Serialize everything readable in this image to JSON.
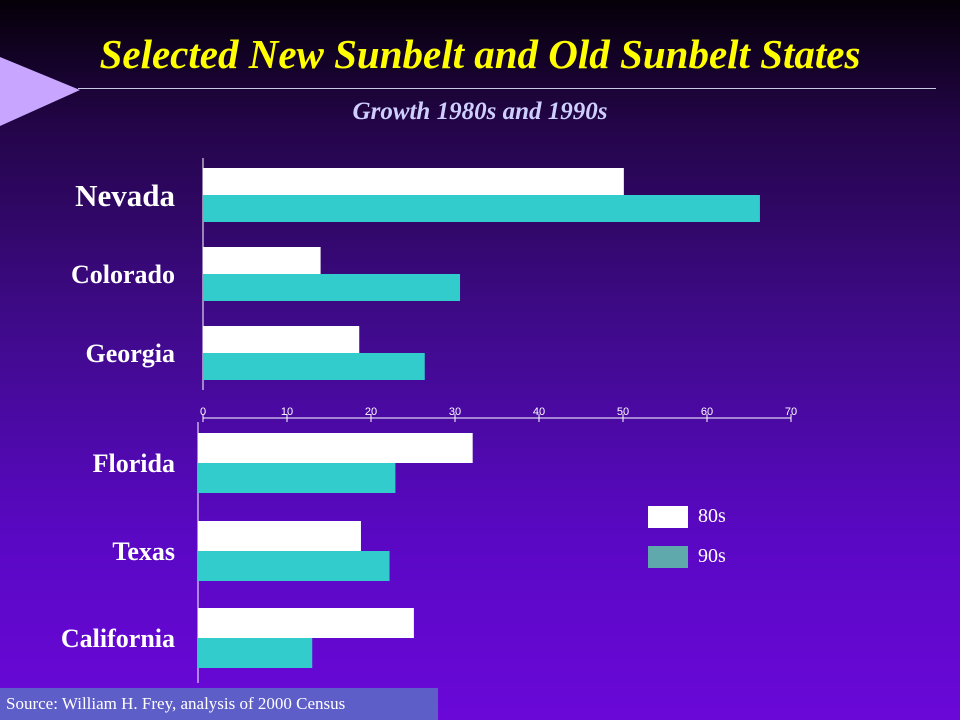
{
  "title": "Selected New Sunbelt and Old Sunbelt States",
  "subtitle": "Growth 1980s and 1990s",
  "source": "Source: William H. Frey, analysis of 2000 Census",
  "colors": {
    "s80": "#ffffff",
    "s90": "#33cccc",
    "legend90": "#5fa8ac",
    "title": "#ffff00"
  },
  "chart_data": [
    {
      "type": "bar",
      "orientation": "horizontal",
      "categories": [
        "Nevada",
        "Colorado",
        "Georgia"
      ],
      "series": [
        {
          "name": "80s",
          "values": [
            50.1,
            14.0,
            18.6
          ]
        },
        {
          "name": "90s",
          "values": [
            66.3,
            30.6,
            26.4
          ]
        }
      ],
      "xticks": [
        "0",
        "10",
        "20",
        "30",
        "40",
        "50",
        "60",
        "70"
      ],
      "xlim": [
        0,
        70
      ]
    },
    {
      "type": "bar",
      "orientation": "horizontal",
      "categories": [
        "Florida",
        "Texas",
        "California"
      ],
      "series": [
        {
          "name": "80s",
          "values": [
            32.7,
            19.4,
            25.7
          ]
        },
        {
          "name": "90s",
          "values": [
            23.5,
            22.8,
            13.6
          ]
        }
      ],
      "xlim": [
        0,
        70
      ]
    }
  ],
  "legend": [
    {
      "label": "80s"
    },
    {
      "label": "90s"
    }
  ]
}
